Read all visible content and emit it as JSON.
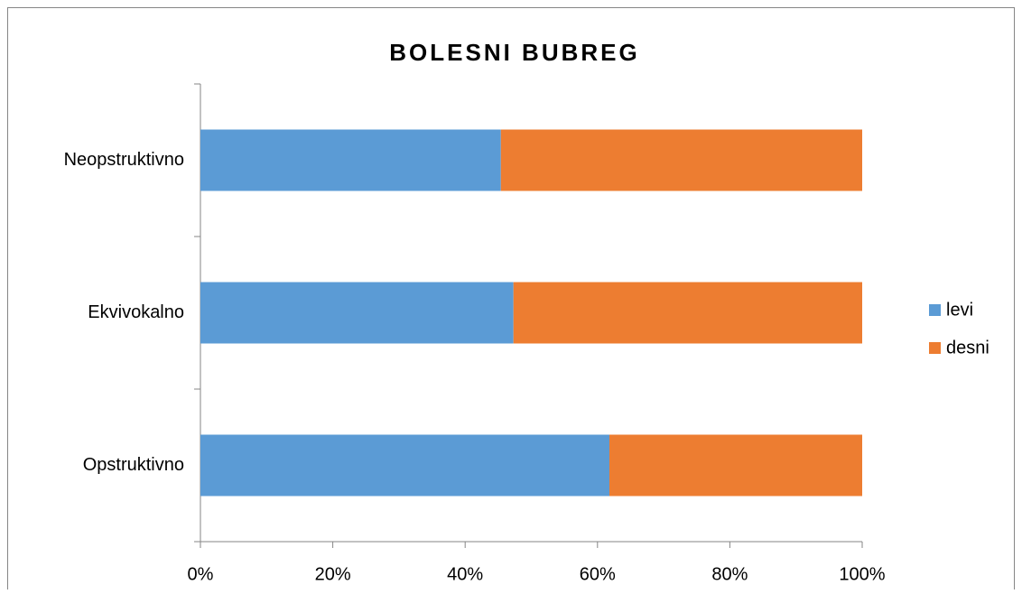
{
  "chart_data": {
    "type": "bar",
    "orientation": "horizontal",
    "stacked": true,
    "title": "BOLESNI BUBREG",
    "categories": [
      "Opstruktivno",
      "Ekvivokalno",
      "Neopstruktivno"
    ],
    "series": [
      {
        "name": "levi",
        "color": "#5b9bd5",
        "values": [
          61.8,
          47.3,
          45.4
        ]
      },
      {
        "name": "desni",
        "color": "#ed7d31",
        "values": [
          38.2,
          52.7,
          54.6
        ]
      }
    ],
    "xlim": [
      0,
      100
    ],
    "xticks": [
      {
        "value": 0,
        "label": "0%"
      },
      {
        "value": 20,
        "label": "20%"
      },
      {
        "value": 40,
        "label": "40%"
      },
      {
        "value": 60,
        "label": "60%"
      },
      {
        "value": 80,
        "label": "80%"
      },
      {
        "value": 100,
        "label": "100%"
      }
    ],
    "grid": false,
    "legend": "right"
  }
}
